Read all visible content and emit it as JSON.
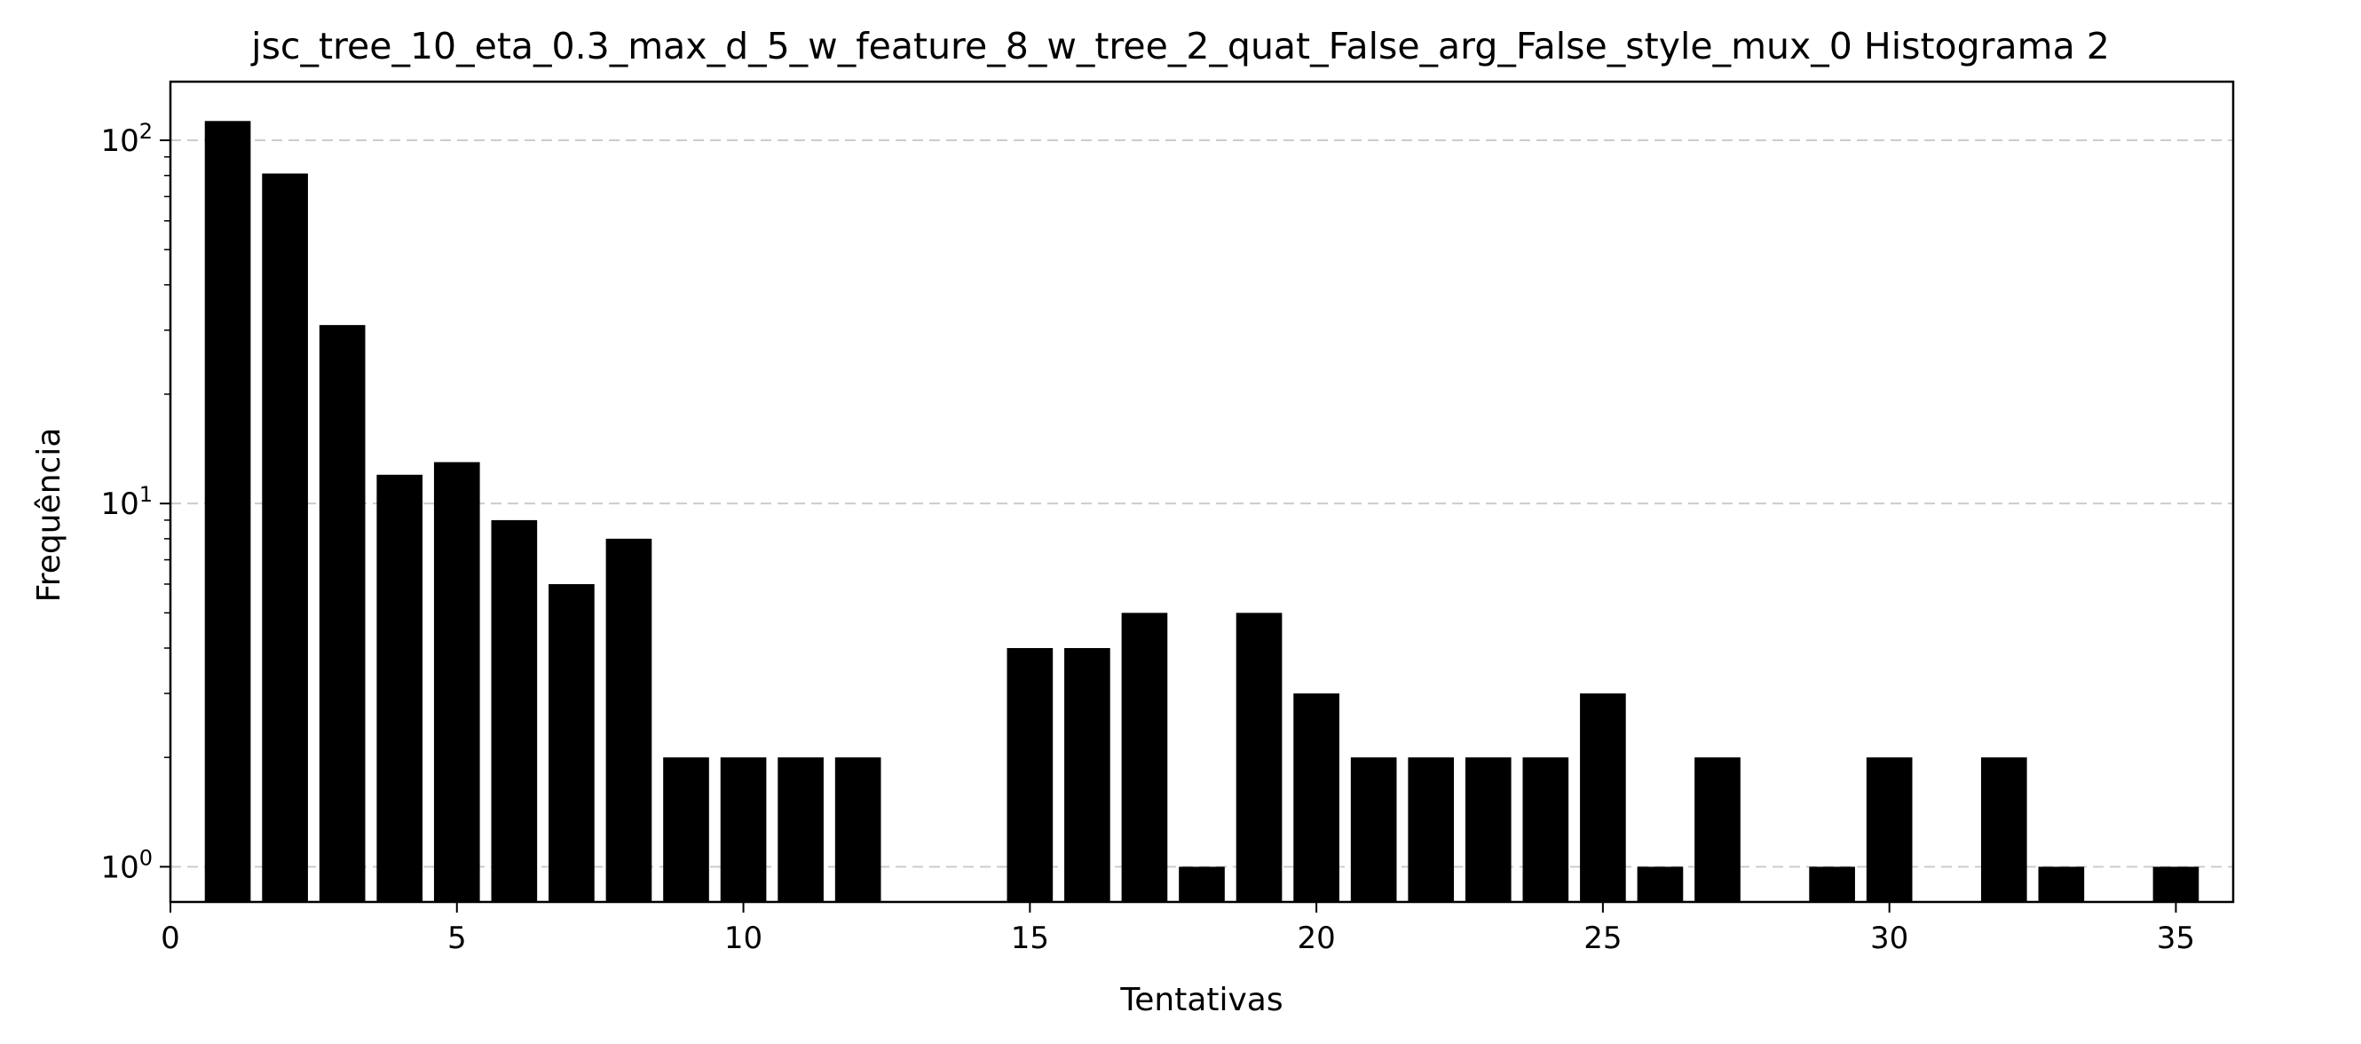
{
  "chart_data": {
    "type": "bar",
    "title": "jsc_tree_10_eta_0.3_max_d_5_w_feature_8_w_tree_2_quat_False_arg_False_style_mux_0 Histograma 2",
    "xlabel": "Tentativas",
    "ylabel": "Frequência",
    "x": [
      1,
      2,
      3,
      4,
      5,
      6,
      7,
      8,
      9,
      10,
      11,
      12,
      15,
      16,
      17,
      18,
      19,
      20,
      21,
      22,
      23,
      24,
      25,
      26,
      27,
      29,
      30,
      32,
      33,
      35
    ],
    "values": [
      113,
      81,
      31,
      12,
      13,
      9,
      6,
      8,
      2,
      2,
      2,
      2,
      4,
      4,
      5,
      1,
      5,
      3,
      2,
      2,
      2,
      2,
      3,
      1,
      2,
      1,
      2,
      2,
      1,
      1
    ],
    "xlim": [
      0,
      36
    ],
    "ylim": [
      0.8,
      145
    ],
    "yscale": "log",
    "xticks": [
      0,
      5,
      10,
      15,
      20,
      25,
      30,
      35
    ],
    "yticks": [
      {
        "value": 1,
        "base": "10",
        "exp": "0"
      },
      {
        "value": 10,
        "base": "10",
        "exp": "1"
      },
      {
        "value": 100,
        "base": "10",
        "exp": "2"
      }
    ],
    "grid": "y-major-dashed",
    "bar_color": "#000000",
    "grid_color": "#cccccc"
  }
}
